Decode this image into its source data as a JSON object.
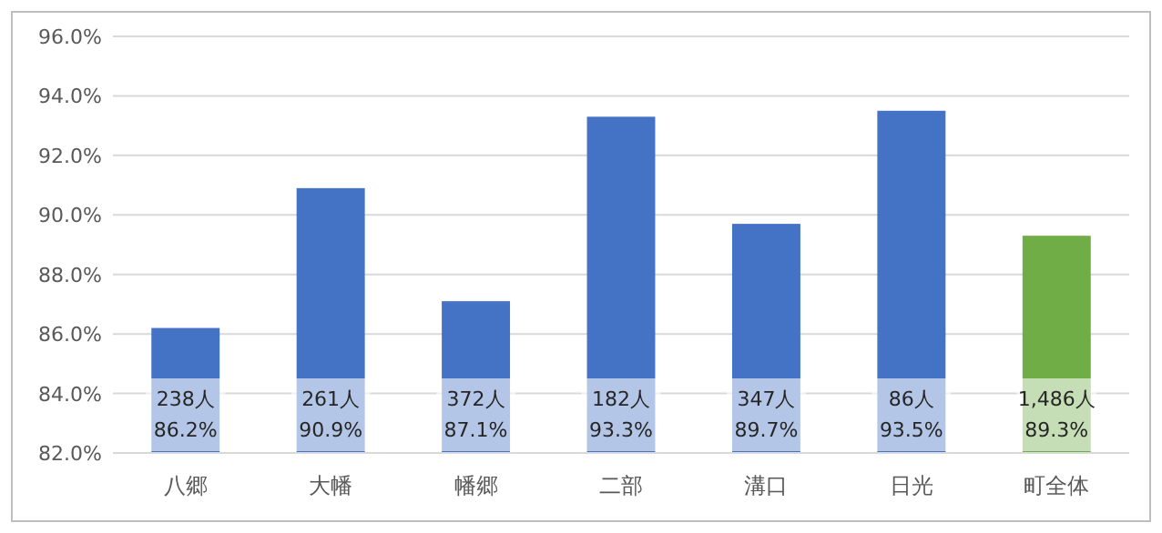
{
  "chart_data": {
    "type": "bar",
    "categories": [
      "八郷",
      "大幡",
      "幡郷",
      "二部",
      "溝口",
      "日光",
      "町全体"
    ],
    "values": [
      86.2,
      90.9,
      87.1,
      93.3,
      89.7,
      93.5,
      89.3
    ],
    "colors": [
      "#4472c4",
      "#4472c4",
      "#4472c4",
      "#4472c4",
      "#4472c4",
      "#4472c4",
      "#70ad47"
    ],
    "value_labels": [
      "238人\n86.2%",
      "261人\n90.9%",
      "372人\n87.1%",
      "182人\n93.3%",
      "347人\n89.7%",
      "86人\n93.5%",
      "1,486人\n89.3%"
    ],
    "ylim": [
      82,
      96
    ],
    "yticks": [
      {
        "value": 82,
        "label": "82.0%"
      },
      {
        "value": 84,
        "label": "84.0%"
      },
      {
        "value": 86,
        "label": "86.0%"
      },
      {
        "value": 88,
        "label": "88.0%"
      },
      {
        "value": 90,
        "label": "90.0%"
      },
      {
        "value": 92,
        "label": "92.0%"
      },
      {
        "value": 94,
        "label": "94.0%"
      },
      {
        "value": 96,
        "label": "96.0%"
      }
    ],
    "grid": "y"
  }
}
